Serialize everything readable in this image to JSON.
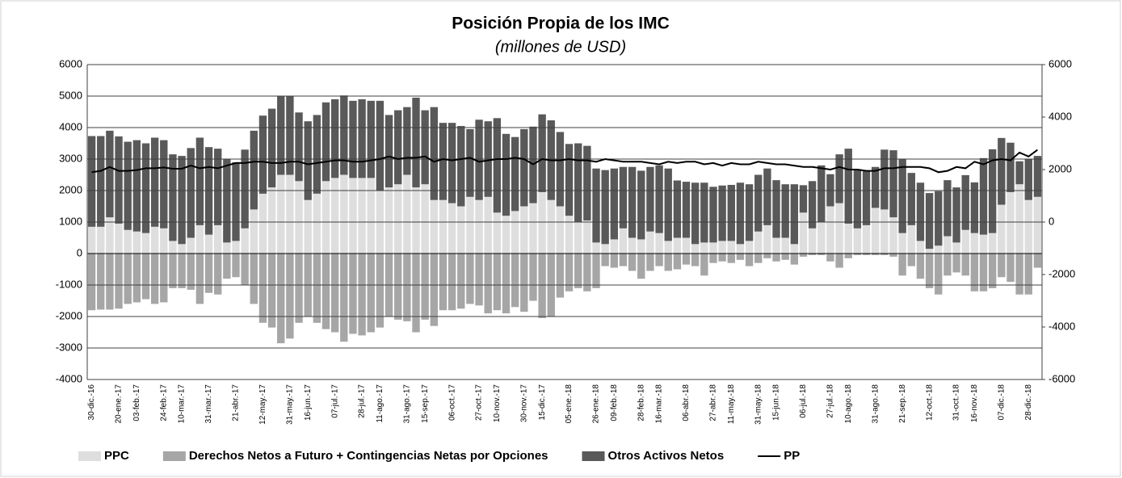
{
  "chart_data": {
    "type": "bar",
    "stacked": true,
    "title": "Posición Propia de los IMC",
    "subtitle": "(millones de USD)",
    "categories": [
      "30-dic.-16",
      null,
      null,
      "20-ene.-17",
      null,
      "03-feb.-17",
      null,
      null,
      "24-feb.-17",
      null,
      "10-mar.-17",
      null,
      null,
      "31-mar.-17",
      null,
      null,
      "21-abr.-17",
      null,
      null,
      "12-may.-17",
      null,
      null,
      "31-may.-17",
      null,
      "16-jun.-17",
      null,
      null,
      "07-jul.-17",
      null,
      null,
      "28-jul.-17",
      null,
      "11-ago.-17",
      null,
      null,
      "31-ago.-17",
      null,
      "15-sep.-17",
      null,
      null,
      "06-oct.-17",
      null,
      null,
      "27-oct.-17",
      null,
      "10-nov.-17",
      null,
      null,
      "30-nov.-17",
      null,
      "15-dic.-17",
      null,
      null,
      "05-ene.-18",
      null,
      null,
      "26-ene.-18",
      null,
      "09-feb.-18",
      null,
      null,
      "28-feb.-18",
      null,
      "16-mar.-18",
      null,
      null,
      "06-abr.-18",
      null,
      null,
      "27-abr.-18",
      null,
      "11-may.-18",
      null,
      null,
      "31-may.-18",
      null,
      "15-jun.-18",
      null,
      null,
      "06-jul.-18",
      null,
      null,
      "27-jul.-18",
      null,
      "10-ago.-18",
      null,
      null,
      "31-ago.-18",
      null,
      null,
      "21-sep.-18",
      null,
      null,
      "12-oct.-18",
      null,
      null,
      "31-oct.-18",
      null,
      "16-nov.-18",
      null,
      null,
      "07-dic.-18",
      null,
      null,
      "28-dic.-18",
      null
    ],
    "series": [
      {
        "name": "PPC",
        "color": "#dedede",
        "values": [
          850,
          850,
          1150,
          950,
          750,
          700,
          650,
          850,
          800,
          400,
          300,
          500,
          900,
          600,
          900,
          350,
          400,
          800,
          1400,
          1900,
          2100,
          2500,
          2500,
          2300,
          1700,
          1900,
          2300,
          2400,
          2500,
          2400,
          2400,
          2400,
          2000,
          2100,
          2200,
          2500,
          2100,
          2200,
          1700,
          1700,
          1600,
          1500,
          1800,
          1700,
          1800,
          1300,
          1200,
          1350,
          1500,
          1600,
          1950,
          1700,
          1500,
          1200,
          1000,
          1050,
          350,
          300,
          450,
          800,
          500,
          450,
          700,
          650,
          400,
          500,
          500,
          300,
          350,
          350,
          400,
          400,
          300,
          400,
          700,
          900,
          500,
          500,
          300,
          1300,
          800,
          1000,
          1500,
          1600,
          950,
          800,
          900,
          1450,
          1400,
          1150,
          650,
          900,
          400,
          150,
          250,
          550,
          350,
          750,
          650,
          600,
          650,
          1550,
          1950,
          2200,
          1700,
          1800
        ]
      },
      {
        "name": "Derechos Netos a Futuro + Contingencias Netas por Opciones",
        "color": "#a6a6a6",
        "values": [
          -1800,
          -1780,
          -1780,
          -1750,
          -1600,
          -1550,
          -1450,
          -1600,
          -1550,
          -1100,
          -1100,
          -1150,
          -1600,
          -1250,
          -1300,
          -800,
          -750,
          -1000,
          -1600,
          -2200,
          -2350,
          -2850,
          -2700,
          -2200,
          -2000,
          -2200,
          -2400,
          -2500,
          -2800,
          -2550,
          -2600,
          -2500,
          -2350,
          -2000,
          -2100,
          -2150,
          -2500,
          -2100,
          -2300,
          -1800,
          -1800,
          -1750,
          -1600,
          -1650,
          -1900,
          -1800,
          -1900,
          -1700,
          -1850,
          -1500,
          -2050,
          -2000,
          -1400,
          -1200,
          -1100,
          -1200,
          -1100,
          -400,
          -450,
          -400,
          -550,
          -800,
          -550,
          -400,
          -550,
          -500,
          -350,
          -400,
          -700,
          -300,
          -250,
          -300,
          -200,
          -400,
          -300,
          -150,
          -250,
          -200,
          -350,
          -100,
          -50,
          -50,
          -250,
          -450,
          -150,
          -50,
          -50,
          -50,
          -50,
          -100,
          -700,
          -400,
          -800,
          -1100,
          -1300,
          -700,
          -600,
          -700,
          -1200,
          -1200,
          -1100,
          -750,
          -900,
          -1300,
          -1300,
          -450
        ]
      },
      {
        "name": "Otros Activos Netos",
        "color": "#595959",
        "values": [
          2880,
          2880,
          2750,
          2770,
          2800,
          2900,
          2850,
          2830,
          2800,
          2750,
          2800,
          2850,
          2780,
          2780,
          2430,
          2650,
          2500,
          2500,
          2500,
          2480,
          2500,
          2500,
          2500,
          2180,
          2500,
          2500,
          2500,
          2500,
          2520,
          2450,
          2500,
          2450,
          2850,
          2300,
          2350,
          2150,
          2850,
          2350,
          2950,
          2450,
          2550,
          2550,
          2150,
          2550,
          2400,
          3000,
          2600,
          2350,
          2450,
          2430,
          2470,
          2530,
          2360,
          2280,
          2500,
          2370,
          2350,
          2350,
          2250,
          1950,
          2250,
          2180,
          2050,
          2150,
          2300,
          1820,
          1780,
          1950,
          1900,
          1770,
          1760,
          1780,
          1950,
          1800,
          1800,
          1800,
          1830,
          1700,
          1900,
          870,
          1500,
          1800,
          1020,
          1550,
          2380,
          1880,
          1720,
          1300,
          1900,
          2130,
          2350,
          1660,
          1850,
          1770,
          1730,
          1780,
          1750,
          1740,
          1610,
          2430,
          2660,
          2120,
          1570,
          730,
          1300,
          1300
        ]
      },
      {
        "name": "PP",
        "type": "line",
        "axis": "y2",
        "color": "#000000",
        "values": [
          1900,
          1950,
          2100,
          1950,
          1950,
          1980,
          2050,
          2050,
          2080,
          2030,
          2030,
          2150,
          2050,
          2100,
          2050,
          2150,
          2250,
          2250,
          2300,
          2300,
          2250,
          2250,
          2300,
          2300,
          2200,
          2250,
          2300,
          2350,
          2350,
          2300,
          2300,
          2350,
          2400,
          2500,
          2400,
          2450,
          2450,
          2500,
          2300,
          2400,
          2350,
          2400,
          2450,
          2300,
          2350,
          2400,
          2400,
          2450,
          2400,
          2200,
          2400,
          2350,
          2350,
          2400,
          2350,
          2350,
          2300,
          2400,
          2350,
          2300,
          2300,
          2300,
          2250,
          2200,
          2300,
          2250,
          2300,
          2300,
          2200,
          2250,
          2150,
          2250,
          2200,
          2200,
          2300,
          2250,
          2200,
          2200,
          2150,
          2100,
          2100,
          2050,
          2000,
          2100,
          2000,
          2000,
          1950,
          1950,
          2050,
          2050,
          2100,
          2100,
          2100,
          2050,
          1900,
          1950,
          2100,
          2050,
          2300,
          2200,
          2350,
          2400,
          2350,
          2650,
          2500,
          2750
        ]
      }
    ],
    "ylim": [
      -4000,
      6000
    ],
    "yticks": [
      -4000,
      -3000,
      -2000,
      -1000,
      0,
      1000,
      2000,
      3000,
      4000,
      5000,
      6000
    ],
    "y2lim": [
      -6000,
      6000
    ],
    "y2ticks": [
      -6000,
      -4000,
      -2000,
      0,
      2000,
      4000,
      6000
    ],
    "grid": true,
    "legend": "bottom"
  }
}
